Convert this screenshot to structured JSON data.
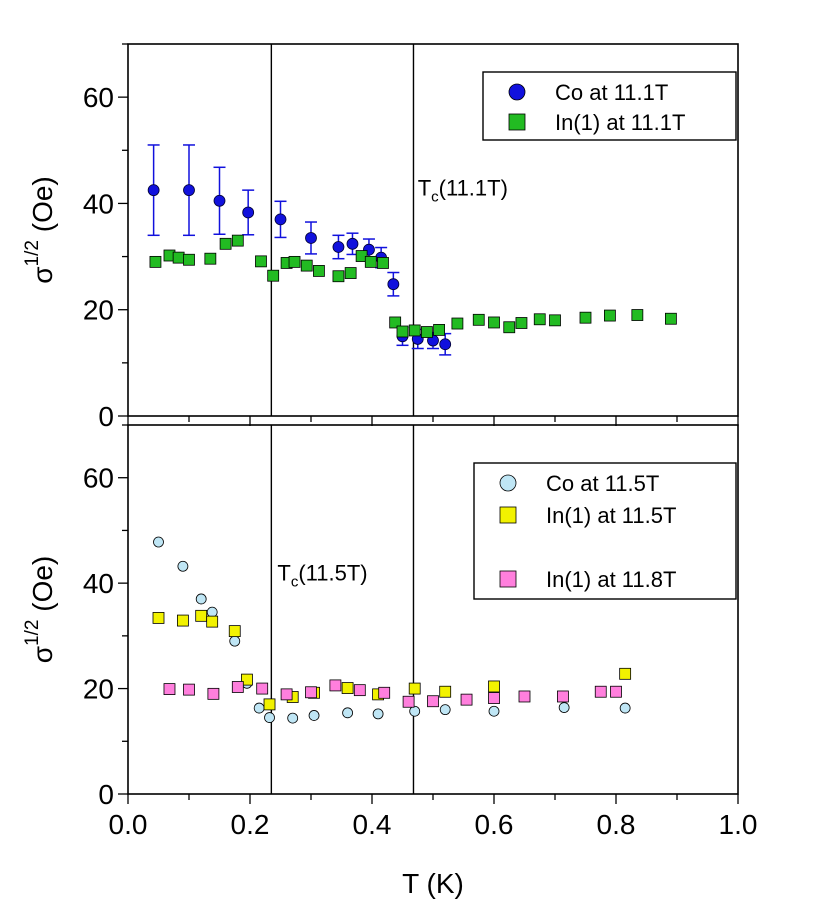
{
  "chart_data": [
    {
      "type": "scatter",
      "xlabel": "",
      "ylabel": "σ1/2 (Oe)",
      "xlim": [
        0.0,
        1.0
      ],
      "ylim": [
        0,
        70
      ],
      "yticks": [
        "0",
        "20",
        "40",
        "60"
      ],
      "xticks": [],
      "legend_position": "top-right",
      "vlines": [
        0.235,
        0.468
      ],
      "annotations": [
        {
          "base": "T",
          "sub": "c",
          "rest": "(11.1T)",
          "x": 0.47,
          "y": 41.5
        }
      ],
      "series": [
        {
          "name": "Co at 11.1T",
          "marker": "circle",
          "color": "#1111dd",
          "x": [
            0.042,
            0.1,
            0.15,
            0.197,
            0.25,
            0.3,
            0.345,
            0.368,
            0.395,
            0.415,
            0.435,
            0.45,
            0.475,
            0.5,
            0.52
          ],
          "y": [
            42.5,
            42.5,
            40.5,
            38.3,
            37.0,
            33.5,
            31.8,
            32.4,
            31.3,
            29.8,
            24.8,
            15.0,
            14.5,
            14.2,
            13.5
          ],
          "err": [
            8.5,
            8.5,
            6.3,
            4.2,
            3.4,
            3.0,
            2.2,
            2.0,
            2.0,
            1.9,
            2.2,
            1.7,
            1.8,
            1.5,
            2.0
          ]
        },
        {
          "name": "In(1) at 11.1T",
          "marker": "square",
          "color": "#22bb22",
          "x": [
            0.045,
            0.068,
            0.083,
            0.1,
            0.135,
            0.16,
            0.18,
            0.218,
            0.238,
            0.26,
            0.273,
            0.293,
            0.313,
            0.345,
            0.365,
            0.383,
            0.398,
            0.418,
            0.438,
            0.45,
            0.47,
            0.49,
            0.51,
            0.54,
            0.575,
            0.6,
            0.625,
            0.645,
            0.675,
            0.7,
            0.75,
            0.79,
            0.835,
            0.89
          ],
          "y": [
            29.0,
            30.2,
            29.8,
            29.4,
            29.6,
            32.4,
            33.0,
            29.1,
            26.4,
            28.8,
            29.0,
            28.3,
            27.3,
            26.3,
            26.9,
            30.1,
            29.0,
            28.8,
            17.6,
            15.9,
            16.1,
            15.8,
            16.2,
            17.4,
            18.1,
            17.6,
            16.7,
            17.5,
            18.2,
            18.0,
            18.5,
            18.9,
            19.0,
            18.3
          ]
        }
      ]
    },
    {
      "type": "scatter",
      "xlabel": "T (K)",
      "ylabel": "σ1/2 (Oe)",
      "xlim": [
        0.0,
        1.0
      ],
      "ylim": [
        0,
        70
      ],
      "yticks": [
        "0",
        "20",
        "40",
        "60"
      ],
      "xticks": [
        "0.0",
        "0.2",
        "0.4",
        "0.6",
        "0.8",
        "1.0"
      ],
      "legend_position": "top-right",
      "vlines": [
        0.235,
        0.468
      ],
      "annotations": [
        {
          "base": "T",
          "sub": "c",
          "rest": "(11.5T)",
          "x": 0.24,
          "y": 40.5
        }
      ],
      "series": [
        {
          "name": "Co at 11.5T",
          "marker": "circle",
          "color": "#bfe6f5",
          "x": [
            0.05,
            0.09,
            0.12,
            0.138,
            0.175,
            0.195,
            0.215,
            0.232,
            0.27,
            0.305,
            0.36,
            0.41,
            0.47,
            0.52,
            0.6,
            0.715,
            0.815
          ],
          "y": [
            47.8,
            43.2,
            37.0,
            34.5,
            29.0,
            21.0,
            16.3,
            14.5,
            14.4,
            14.9,
            15.4,
            15.2,
            15.7,
            16.0,
            15.7,
            16.4,
            16.3
          ]
        },
        {
          "name": "In(1) at 11.5T",
          "marker": "square",
          "color": "#f2f200",
          "x": [
            0.05,
            0.09,
            0.12,
            0.138,
            0.175,
            0.195,
            0.232,
            0.27,
            0.305,
            0.36,
            0.41,
            0.47,
            0.52,
            0.6,
            0.815
          ],
          "y": [
            33.4,
            32.9,
            33.8,
            32.7,
            30.9,
            21.7,
            17.0,
            18.4,
            19.2,
            20.1,
            18.9,
            20.0,
            19.4,
            20.4,
            22.8
          ]
        },
        {
          "name": "In(1) at 11.8T",
          "marker": "square",
          "color": "#ff7fdd",
          "x": [
            0.068,
            0.1,
            0.14,
            0.18,
            0.22,
            0.26,
            0.3,
            0.34,
            0.38,
            0.42,
            0.46,
            0.5,
            0.555,
            0.6,
            0.65,
            0.713,
            0.775,
            0.8
          ],
          "y": [
            19.9,
            19.8,
            19.0,
            20.3,
            20.0,
            18.9,
            19.3,
            20.6,
            19.7,
            19.2,
            17.5,
            17.6,
            17.9,
            18.2,
            18.5,
            18.5,
            19.4,
            19.4
          ]
        }
      ]
    }
  ]
}
